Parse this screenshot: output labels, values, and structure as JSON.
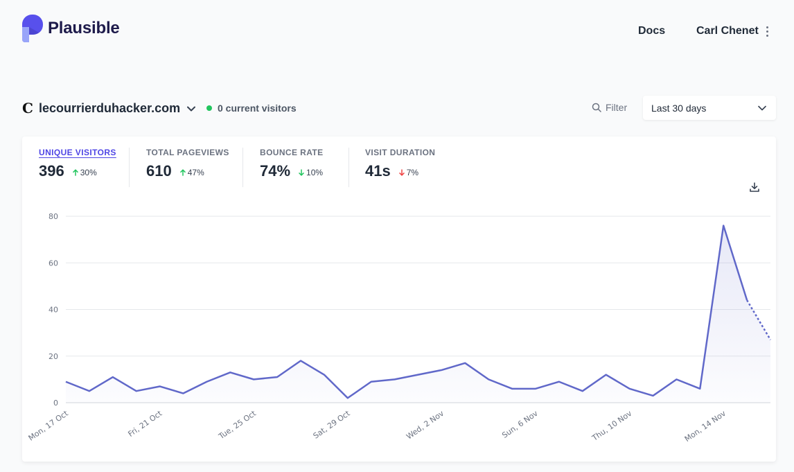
{
  "header": {
    "brand": "Plausible",
    "docs_label": "Docs",
    "user_name": "Carl Chenet"
  },
  "site": {
    "favicon_letter": "C",
    "domain": "lecourrierduhacker.com",
    "current_visitors": "0 current visitors"
  },
  "toolbar": {
    "filter_label": "Filter",
    "period_label": "Last 30 days"
  },
  "metrics": [
    {
      "label": "UNIQUE VISITORS",
      "value": "396",
      "change": "30%",
      "direction": "up"
    },
    {
      "label": "TOTAL PAGEVIEWS",
      "value": "610",
      "change": "47%",
      "direction": "up"
    },
    {
      "label": "BOUNCE RATE",
      "value": "74%",
      "change": "10%",
      "direction": "down-good"
    },
    {
      "label": "VISIT DURATION",
      "value": "41s",
      "change": "7%",
      "direction": "down-bad"
    }
  ],
  "colors": {
    "accent": "#4f46e5",
    "line": "#6068c9",
    "up": "#22c55e",
    "down_bad": "#ef4444",
    "live_dot": "#22c55e"
  },
  "chart_data": {
    "type": "line",
    "series": [
      {
        "values": [
          9,
          5,
          11,
          5,
          7,
          4,
          9,
          13,
          10,
          11,
          18,
          12,
          2,
          9,
          10,
          12,
          14,
          17,
          10,
          6,
          6,
          9,
          5,
          12,
          6,
          3,
          10,
          6,
          76,
          44,
          27
        ]
      }
    ],
    "x_tick_labels": [
      "Mon, 17 Oct",
      "Fri, 21 Oct",
      "Tue, 25 Oct",
      "Sat, 29 Oct",
      "Wed, 2 Nov",
      "Sun, 6 Nov",
      "Thu, 10 Nov",
      "Mon, 14 Nov"
    ],
    "y_ticks": [
      0,
      20,
      40,
      60,
      80
    ],
    "ylim": [
      0,
      80
    ],
    "grid": true,
    "dashed_last_segment": true,
    "area_fill": true
  }
}
